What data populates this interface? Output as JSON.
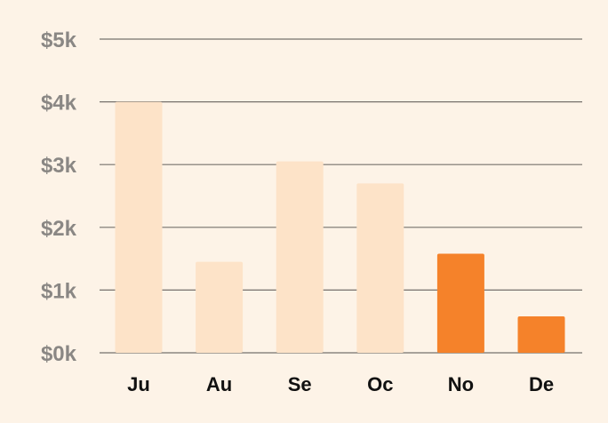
{
  "chart_data": {
    "type": "bar",
    "categories": [
      "Ju",
      "Au",
      "Se",
      "Oc",
      "No",
      "De"
    ],
    "values": [
      4000,
      1450,
      3050,
      2700,
      1580,
      580
    ],
    "highlighted": [
      false,
      false,
      false,
      false,
      true,
      true
    ],
    "ylim": [
      0,
      5000
    ],
    "yticks": [
      0,
      1000,
      2000,
      3000,
      4000,
      5000
    ],
    "ytick_labels": [
      "$0k",
      "$1k",
      "$2k",
      "$3k",
      "$4k",
      "$5k"
    ],
    "grid": true,
    "colors": {
      "background": "#fdf3e7",
      "bar_muted": "#fde3c8",
      "bar_highlight": "#f5822a",
      "tick_y": "#8a8784",
      "tick_x": "#111111"
    }
  }
}
